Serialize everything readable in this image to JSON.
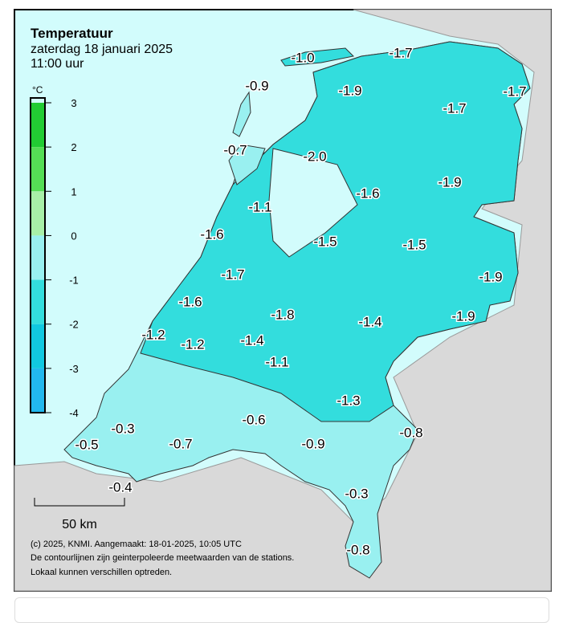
{
  "header": {
    "title": "Temperatuur",
    "date": "zaterdag 18 januari 2025",
    "time": "11:00 uur"
  },
  "legend": {
    "unit": "°C",
    "ticks": [
      3,
      2,
      1,
      0,
      -1,
      -2,
      -3,
      -4
    ],
    "colors": [
      "#22cc33",
      "#55dd55",
      "#a8f0a8",
      "#99f0f0",
      "#33dddd",
      "#11c8e0",
      "#22b8ee"
    ]
  },
  "stations": [
    {
      "label": "-1.0"
    },
    {
      "label": "-1.7"
    },
    {
      "label": "-0.9"
    },
    {
      "label": "-1.9"
    },
    {
      "label": "-1.7"
    },
    {
      "label": "-1.7"
    },
    {
      "label": "-0.7"
    },
    {
      "label": "-2.0"
    },
    {
      "label": "-1.6"
    },
    {
      "label": "-1.9"
    },
    {
      "label": "-1.1"
    },
    {
      "label": "-1.6"
    },
    {
      "label": "-1.5"
    },
    {
      "label": "-1.5"
    },
    {
      "label": "-1.7"
    },
    {
      "label": "-1.9"
    },
    {
      "label": "-1.6"
    },
    {
      "label": "-1.8"
    },
    {
      "label": "-1.4"
    },
    {
      "label": "-1.9"
    },
    {
      "label": "-1.2"
    },
    {
      "label": "-1.2"
    },
    {
      "label": "-1.4"
    },
    {
      "label": "-1.1"
    },
    {
      "label": "-1.3"
    },
    {
      "label": "-0.6"
    },
    {
      "label": "-0.3"
    },
    {
      "label": "-0.8"
    },
    {
      "label": "-0.5"
    },
    {
      "label": "-0.7"
    },
    {
      "label": "-0.9"
    },
    {
      "label": "-0.4"
    },
    {
      "label": "-0.3"
    },
    {
      "label": "-0.8"
    }
  ],
  "scale_bar": "50 km",
  "footer": [
    "(c) 2025, KNMI. Aangemaakt: 18-01-2025, 10:05 UTC",
    "De contourlijnen zijn geinterpoleerde meetwaarden van de stations.",
    "Lokaal kunnen verschillen optreden."
  ]
}
